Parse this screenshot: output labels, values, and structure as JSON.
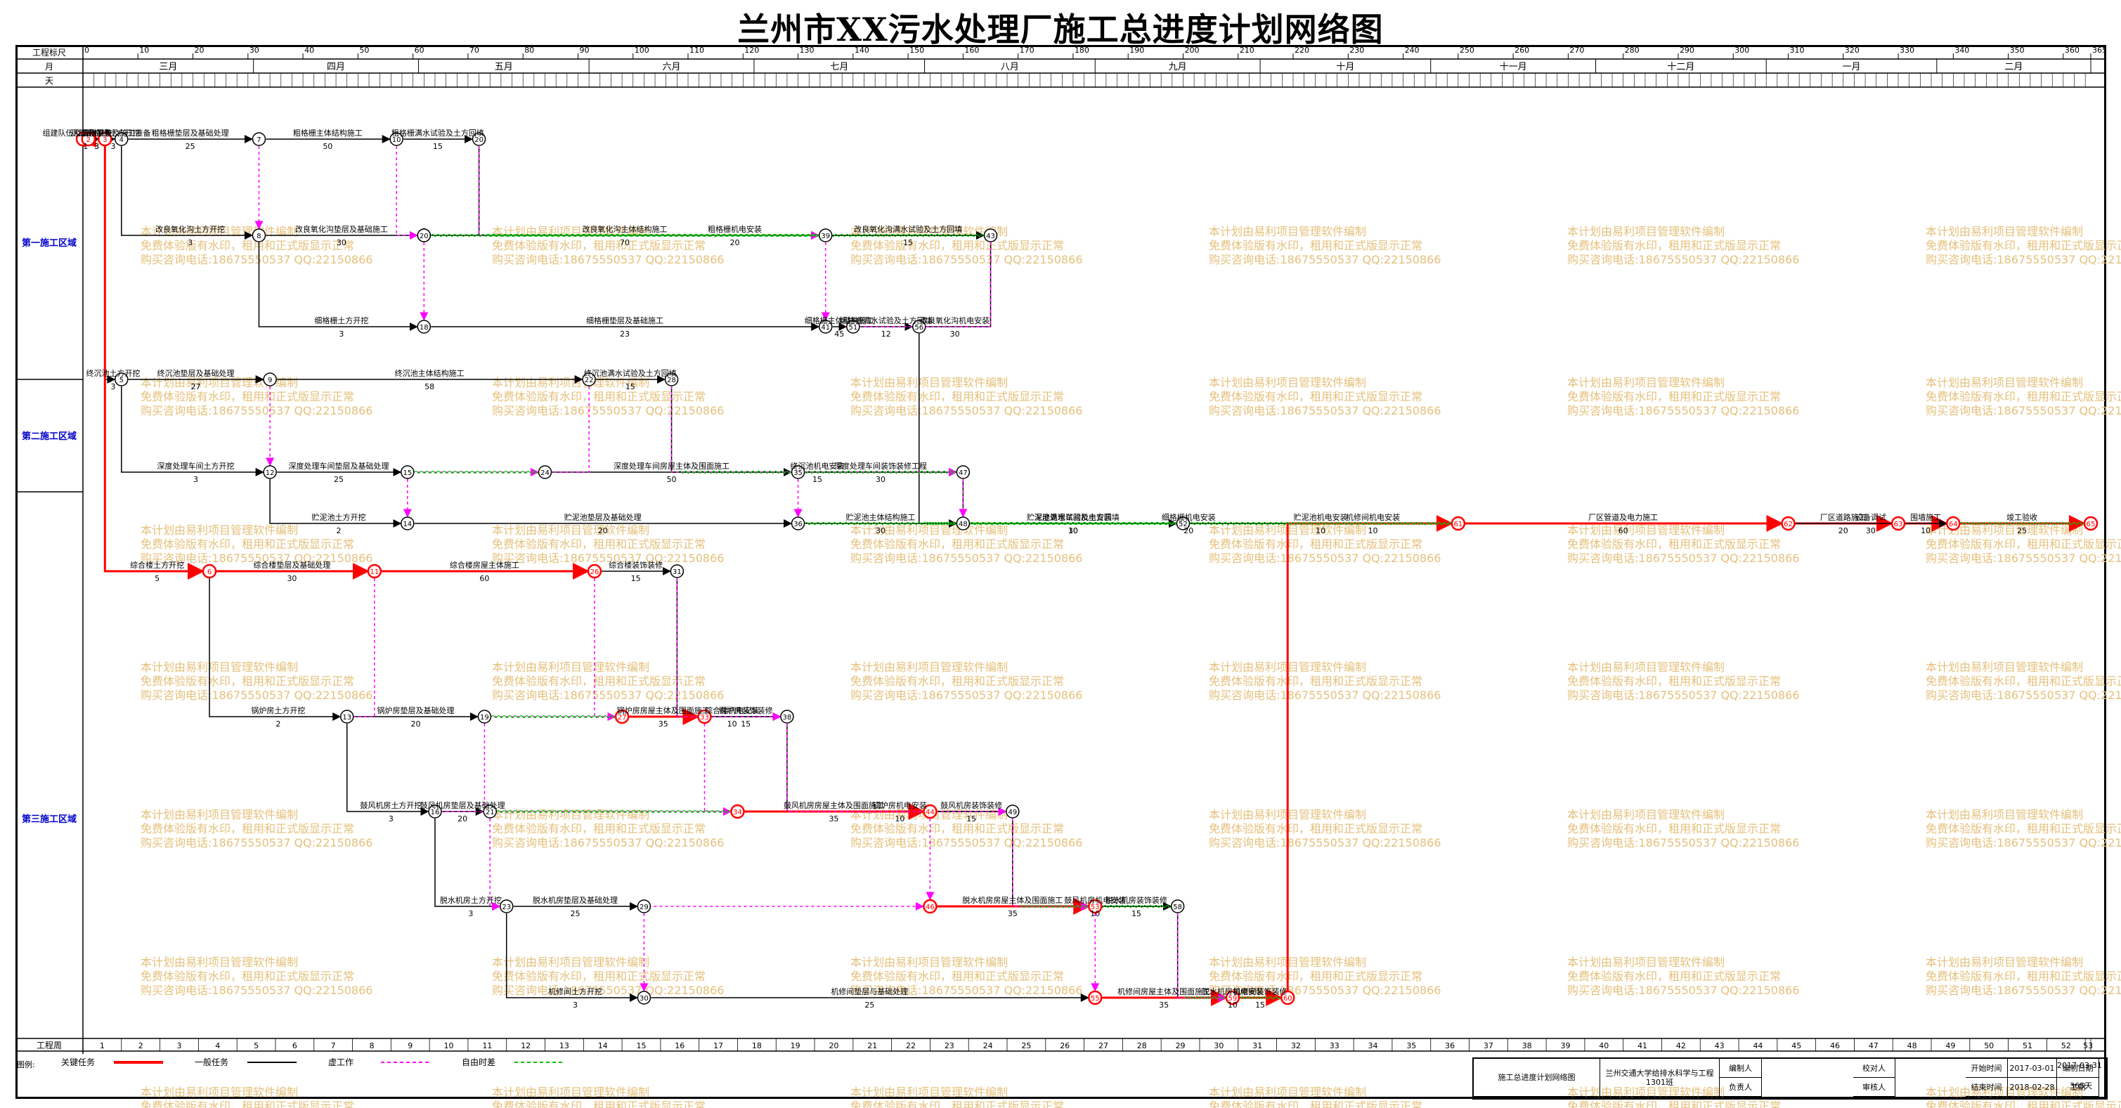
{
  "title": "兰州市XX污水处理厂施工总进度计划网络图",
  "header": {
    "row_labels": [
      "工程标尺",
      "月",
      "天"
    ],
    "scale_ticks": [
      "0",
      "10",
      "20",
      "30",
      "40",
      "50",
      "60",
      "70",
      "80",
      "90",
      "100",
      "110",
      "120",
      "130",
      "140",
      "150",
      "160",
      "170",
      "180",
      "190",
      "200",
      "210",
      "220",
      "230",
      "240",
      "250",
      "260",
      "270",
      "280",
      "290",
      "300",
      "310",
      "320",
      "330",
      "340",
      "350",
      "360",
      "365"
    ],
    "months": [
      "三月",
      "四月",
      "五月",
      "六月",
      "七月",
      "八月",
      "九月",
      "十月",
      "十一月",
      "十二月",
      "一月",
      "二月"
    ]
  },
  "zones": [
    "第一施工区域",
    "第二施工区域",
    "第三施工区域"
  ],
  "bottom_row_label": "工程周",
  "weeks": [
    "1",
    "2",
    "3",
    "4",
    "5",
    "6",
    "7",
    "8",
    "9",
    "10",
    "11",
    "12",
    "13",
    "14",
    "15",
    "16",
    "17",
    "18",
    "19",
    "20",
    "21",
    "22",
    "23",
    "24",
    "25",
    "26",
    "27",
    "28",
    "29",
    "30",
    "31",
    "32",
    "33",
    "34",
    "35",
    "36",
    "37",
    "38",
    "39",
    "40",
    "41",
    "42",
    "43",
    "44",
    "45",
    "46",
    "47",
    "48",
    "49",
    "50",
    "51",
    "52",
    "53"
  ],
  "legend": {
    "label": "图例:",
    "items": [
      "关键任务",
      "一般任务",
      "虚工作",
      "自由时差"
    ]
  },
  "footer": {
    "doc_name": "施工总进度计划网络图",
    "org": "兰州交通大学给排水科学与工程1301班",
    "labels": [
      "编制人",
      "负责人",
      "校对人",
      "审核人",
      "开始时间",
      "结束时间",
      "编制日期",
      "工期"
    ],
    "values": [
      "2017-03-01",
      "2018-02-28",
      "2017-03-31",
      "365天"
    ]
  },
  "watermark": [
    "本计划由易利项目管理软件编制",
    "免费体验版有水印，租用和正式版显示正常",
    "购买咨询电话:18675550537 QQ:22150866"
  ],
  "colors": {
    "critical": "#ff0000",
    "normal": "#000000",
    "dummy": "#ff00ff",
    "float": "#00c000",
    "zone": "#0000cc"
  },
  "chart_data": {
    "type": "network",
    "time_unit": "day",
    "duration_days": 365,
    "nodes": [
      {
        "id": "1",
        "day": 0
      },
      {
        "id": "2",
        "day": 1
      },
      {
        "id": "3",
        "day": 4
      },
      {
        "id": "4",
        "day": 7
      },
      {
        "id": "7",
        "day": 32
      },
      {
        "id": "10",
        "day": 57
      },
      {
        "id": "20",
        "day": 72
      },
      {
        "id": "8",
        "day": 32
      },
      {
        "id": "17",
        "day": 62
      },
      {
        "id": "20b",
        "day": 62
      },
      {
        "id": "39",
        "day": 135
      },
      {
        "id": "43",
        "day": 165
      },
      {
        "id": "18",
        "day": 62
      },
      {
        "id": "41",
        "day": 135
      },
      {
        "id": "51",
        "day": 140
      },
      {
        "id": "56",
        "day": 152
      },
      {
        "id": "5",
        "day": 7
      },
      {
        "id": "9",
        "day": 34
      },
      {
        "id": "22",
        "day": 92
      },
      {
        "id": "28",
        "day": 107
      },
      {
        "id": "12",
        "day": 34
      },
      {
        "id": "15",
        "day": 59
      },
      {
        "id": "24",
        "day": 84
      },
      {
        "id": "35",
        "day": 130
      },
      {
        "id": "47",
        "day": 160
      },
      {
        "id": "14",
        "day": 59
      },
      {
        "id": "36",
        "day": 130
      },
      {
        "id": "48",
        "day": 160
      },
      {
        "id": "52",
        "day": 200
      },
      {
        "id": "61",
        "day": 250
      },
      {
        "id": "6",
        "day": 23
      },
      {
        "id": "11",
        "day": 53
      },
      {
        "id": "26",
        "day": 93
      },
      {
        "id": "31",
        "day": 108
      },
      {
        "id": "13",
        "day": 48
      },
      {
        "id": "19",
        "day": 73
      },
      {
        "id": "27",
        "day": 98
      },
      {
        "id": "33",
        "day": 113
      },
      {
        "id": "38",
        "day": 128
      },
      {
        "id": "16",
        "day": 64
      },
      {
        "id": "21",
        "day": 74
      },
      {
        "id": "34",
        "day": 119
      },
      {
        "id": "44",
        "day": 154
      },
      {
        "id": "49",
        "day": 169
      },
      {
        "id": "23",
        "day": 77
      },
      {
        "id": "29",
        "day": 102
      },
      {
        "id": "46",
        "day": 154
      },
      {
        "id": "53",
        "day": 184
      },
      {
        "id": "58",
        "day": 199
      },
      {
        "id": "30",
        "day": 102
      },
      {
        "id": "55",
        "day": 184
      },
      {
        "id": "59",
        "day": 209
      },
      {
        "id": "60",
        "day": 219
      },
      {
        "id": "62",
        "day": 310
      },
      {
        "id": "63",
        "day": 330
      },
      {
        "id": "64",
        "day": 340
      },
      {
        "id": "65",
        "day": 365
      }
    ],
    "tasks": [
      {
        "name": "测量定位",
        "from": "1",
        "to": "2",
        "duration": 1,
        "kind": "critical"
      },
      {
        "name": "场地平整",
        "from": "2",
        "to": "3",
        "duration": 3,
        "kind": "critical"
      },
      {
        "name": "组建队伍及工作准备及施工准备",
        "from": "2",
        "to": "3",
        "duration": 3,
        "kind": "normal"
      },
      {
        "name": "粗格栅土方开挖",
        "from": "3",
        "to": "4",
        "duration": 3,
        "kind": "normal"
      },
      {
        "name": "粗格栅垫层及基础处理",
        "from": "4",
        "to": "7",
        "duration": 25,
        "kind": "normal"
      },
      {
        "name": "粗格栅主体结构施工",
        "from": "7",
        "to": "10",
        "duration": 50,
        "kind": "normal"
      },
      {
        "name": "粗格栅满水试验及土方回填",
        "from": "10",
        "to": "20",
        "duration": 15,
        "kind": "normal"
      },
      {
        "name": "粗格栅机电安装",
        "from": "20",
        "to": "43",
        "duration": 20,
        "kind": "normal"
      },
      {
        "name": "改良氧化沟土方开挖",
        "from": "4",
        "to": "8",
        "duration": 3,
        "kind": "normal"
      },
      {
        "name": "改良氧化沟垫层及基础施工",
        "from": "8",
        "to": "17",
        "duration": 30,
        "kind": "normal"
      },
      {
        "name": "改良氧化沟主体结构施工",
        "from": "20b",
        "to": "39",
        "duration": 70,
        "kind": "normal"
      },
      {
        "name": "改良氧化沟满水试验及土方回填",
        "from": "39",
        "to": "43",
        "duration": 15,
        "kind": "normal"
      },
      {
        "name": "改良氧化沟机电安装",
        "from": "43",
        "to": "56",
        "duration": 30,
        "kind": "normal"
      },
      {
        "name": "细格栅土方开挖",
        "from": "8",
        "to": "18",
        "duration": 3,
        "kind": "normal"
      },
      {
        "name": "细格栅垫层及基础施工",
        "from": "18",
        "to": "41",
        "duration": 23,
        "kind": "normal"
      },
      {
        "name": "细格栅主体结构施工",
        "from": "41",
        "to": "51",
        "duration": 45,
        "kind": "normal"
      },
      {
        "name": "细格栅满水试验及土方回填",
        "from": "51",
        "to": "56",
        "duration": 12,
        "kind": "normal"
      },
      {
        "name": "细格栅机电安装",
        "from": "56",
        "to": "61",
        "duration": 20,
        "kind": "normal"
      },
      {
        "name": "终沉池土方开挖",
        "from": "3",
        "to": "5",
        "duration": 3,
        "kind": "normal"
      },
      {
        "name": "终沉池垫层及基础处理",
        "from": "5",
        "to": "9",
        "duration": 27,
        "kind": "normal"
      },
      {
        "name": "终沉池主体结构施工",
        "from": "9",
        "to": "22",
        "duration": 58,
        "kind": "normal"
      },
      {
        "name": "终沉池满水试验及土方回填",
        "from": "22",
        "to": "28",
        "duration": 15,
        "kind": "normal"
      },
      {
        "name": "终沉池机电安装",
        "from": "28",
        "to": "47",
        "duration": 15,
        "kind": "normal"
      },
      {
        "name": "深度处理车间土方开挖",
        "from": "5",
        "to": "12",
        "duration": 3,
        "kind": "normal"
      },
      {
        "name": "深度处理车间垫层及基础处理",
        "from": "12",
        "to": "15",
        "duration": 25,
        "kind": "normal"
      },
      {
        "name": "深度处理车间房屋主体及围面施工",
        "from": "24",
        "to": "35",
        "duration": 50,
        "kind": "normal"
      },
      {
        "name": "深度处理车间装饰装修工程",
        "from": "35",
        "to": "47",
        "duration": 30,
        "kind": "normal"
      },
      {
        "name": "深度处理车间机电安装",
        "from": "47",
        "to": "52",
        "duration": 30,
        "kind": "normal"
      },
      {
        "name": "贮泥池土方开挖",
        "from": "12",
        "to": "14",
        "duration": 2,
        "kind": "normal"
      },
      {
        "name": "贮泥池垫层及基础处理",
        "from": "14",
        "to": "36",
        "duration": 20,
        "kind": "normal"
      },
      {
        "name": "贮泥池主体结构施工",
        "from": "36",
        "to": "48",
        "duration": 30,
        "kind": "normal"
      },
      {
        "name": "贮泥池满水试验及土方回填",
        "from": "48",
        "to": "52",
        "duration": 10,
        "kind": "normal"
      },
      {
        "name": "贮泥池机电安装",
        "from": "52",
        "to": "61",
        "duration": 10,
        "kind": "normal"
      },
      {
        "name": "综合楼土方开挖",
        "from": "3",
        "to": "6",
        "duration": 5,
        "kind": "critical"
      },
      {
        "name": "综合楼垫层及基础处理",
        "from": "6",
        "to": "11",
        "duration": 30,
        "kind": "critical"
      },
      {
        "name": "综合楼房屋主体施工",
        "from": "11",
        "to": "26",
        "duration": 60,
        "kind": "critical"
      },
      {
        "name": "综合楼装饰装修",
        "from": "26",
        "to": "31",
        "duration": 15,
        "kind": "normal"
      },
      {
        "name": "综合楼机电安装",
        "from": "31",
        "to": "38",
        "duration": 10,
        "kind": "normal"
      },
      {
        "name": "锅炉房土方开挖",
        "from": "6",
        "to": "13",
        "duration": 2,
        "kind": "normal"
      },
      {
        "name": "锅炉房垫层及基础处理",
        "from": "13",
        "to": "19",
        "duration": 20,
        "kind": "normal"
      },
      {
        "name": "锅炉房房屋主体及围面施工",
        "from": "27",
        "to": "33",
        "duration": 35,
        "kind": "critical"
      },
      {
        "name": "锅炉房装饰装修",
        "from": "33",
        "to": "38",
        "duration": 15,
        "kind": "normal"
      },
      {
        "name": "锅炉房机电安装",
        "from": "38",
        "to": "49",
        "duration": 10,
        "kind": "normal"
      },
      {
        "name": "鼓风机房土方开挖",
        "from": "13",
        "to": "16",
        "duration": 3,
        "kind": "normal"
      },
      {
        "name": "鼓风机房垫层及基础处理",
        "from": "16",
        "to": "21",
        "duration": 20,
        "kind": "normal"
      },
      {
        "name": "鼓风机房房屋主体及围面施工",
        "from": "34",
        "to": "44",
        "duration": 35,
        "kind": "critical"
      },
      {
        "name": "鼓风机房装饰装修",
        "from": "44",
        "to": "49",
        "duration": 15,
        "kind": "normal"
      },
      {
        "name": "鼓风机房机电安装",
        "from": "49",
        "to": "58",
        "duration": 10,
        "kind": "normal"
      },
      {
        "name": "脱水机房土方开挖",
        "from": "16",
        "to": "23",
        "duration": 3,
        "kind": "normal"
      },
      {
        "name": "脱水机房垫层及基础处理",
        "from": "23",
        "to": "29",
        "duration": 25,
        "kind": "normal"
      },
      {
        "name": "脱水机房房屋主体及围面施工",
        "from": "46",
        "to": "53",
        "duration": 35,
        "kind": "critical"
      },
      {
        "name": "脱水机房装饰装修",
        "from": "53",
        "to": "58",
        "duration": 15,
        "kind": "normal"
      },
      {
        "name": "脱水机房机电安装",
        "from": "58",
        "to": "60",
        "duration": 10,
        "kind": "normal"
      },
      {
        "name": "机修间土方开挖",
        "from": "23",
        "to": "30",
        "duration": 3,
        "kind": "normal"
      },
      {
        "name": "机修间垫层与基础处理",
        "from": "30",
        "to": "55",
        "duration": 25,
        "kind": "normal"
      },
      {
        "name": "机修间房屋主体及围面施工",
        "from": "55",
        "to": "59",
        "duration": 35,
        "kind": "critical"
      },
      {
        "name": "机修间装饰装修",
        "from": "59",
        "to": "60",
        "duration": 15,
        "kind": "critical"
      },
      {
        "name": "机修间机电安装",
        "from": "60",
        "to": "61",
        "duration": 10,
        "kind": "critical"
      },
      {
        "name": "厂区管道及电力施工",
        "from": "61",
        "to": "62",
        "duration": 60,
        "kind": "critical"
      },
      {
        "name": "厂区道路施工",
        "from": "62",
        "to": "63",
        "duration": 20,
        "kind": "critical"
      },
      {
        "name": "围墙施工",
        "from": "63",
        "to": "64",
        "duration": 10,
        "kind": "critical"
      },
      {
        "name": "竣工验收",
        "from": "64",
        "to": "65",
        "duration": 25,
        "kind": "critical"
      },
      {
        "name": "设备调试",
        "from": "62",
        "to": "64",
        "duration": 30,
        "kind": "normal"
      }
    ]
  }
}
